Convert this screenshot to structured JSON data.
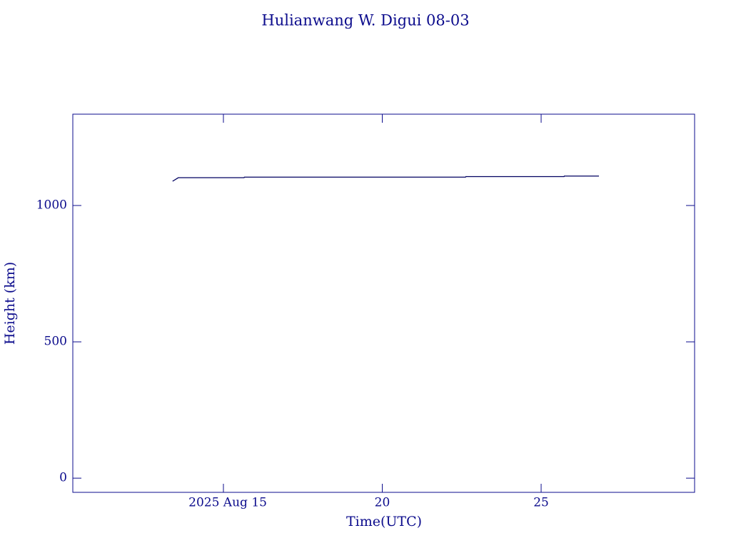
{
  "chart_data": {
    "type": "line",
    "title": "Hulianwang W. Digui 08-03",
    "x_label": "Time(UTC)",
    "y_label": "Height (km)",
    "x": [
      13.4,
      13.58,
      15.65,
      15.66,
      22.62,
      22.63,
      25.72,
      25.73,
      26.82
    ],
    "series": [
      {
        "color": "#000060",
        "values": [
          1089,
          1102,
          1102,
          1104,
          1104,
          1106,
          1106,
          1108,
          1108
        ]
      }
    ],
    "xlim": [
      10.26,
      29.83
    ],
    "xticks": [
      {
        "value": 15,
        "label": "2025 Aug 15"
      },
      20,
      25
    ],
    "ylim": [
      -52,
      1335
    ],
    "yticks": [
      0,
      500,
      1000
    ],
    "axis_color": "#0b0b8c"
  }
}
